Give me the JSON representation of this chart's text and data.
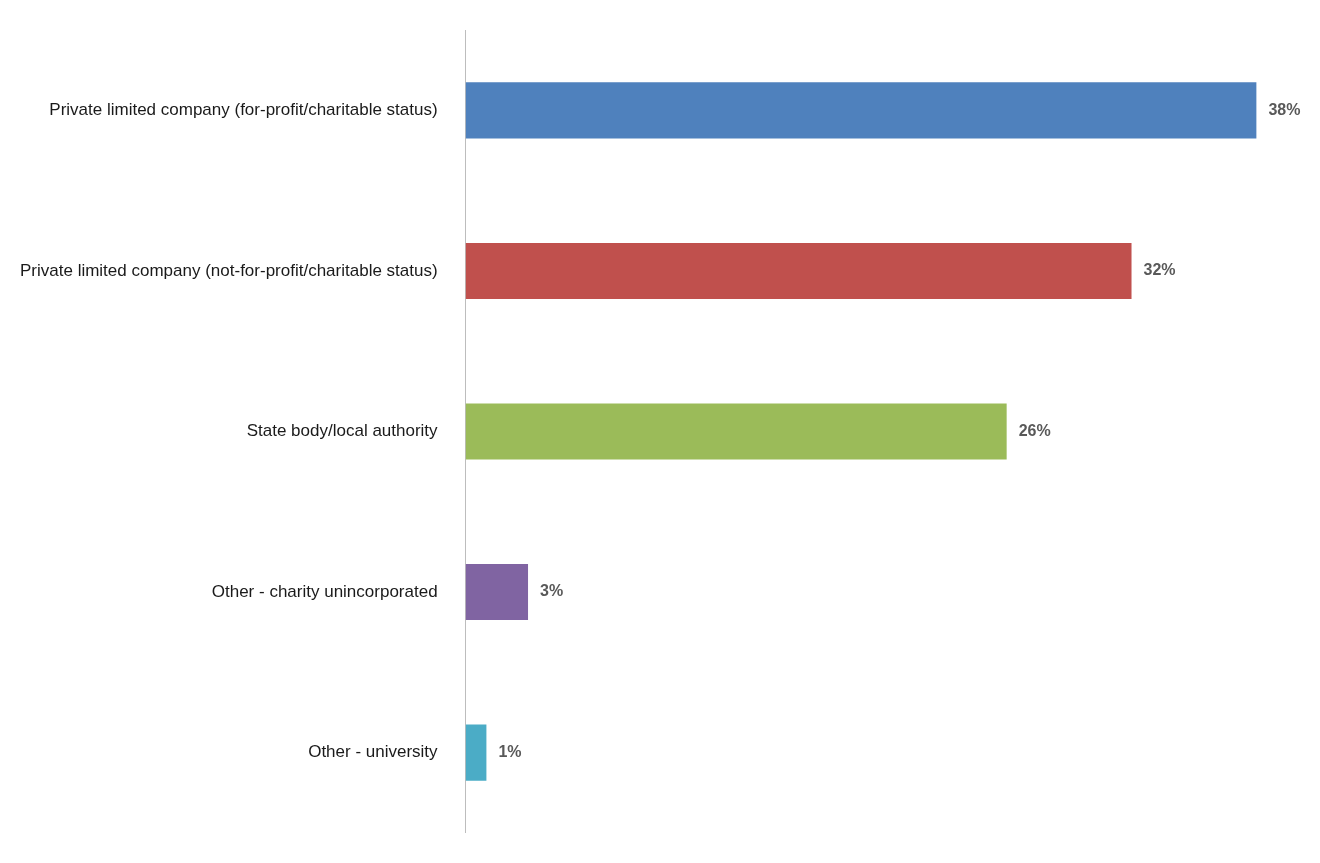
{
  "chart_data": {
    "type": "bar",
    "orientation": "horizontal",
    "categories": [
      "Private limited company (for-profit/charitable status)",
      "Private limited company (not-for-profit/charitable status)",
      "State body/local authority",
      "Other - charity unincorporated",
      "Other - university"
    ],
    "values": [
      38,
      32,
      26,
      3,
      1
    ],
    "colors": [
      "#4f81bd",
      "#c0504d",
      "#9bbb59",
      "#8064a2",
      "#4bacc6"
    ],
    "value_labels": [
      "38%",
      "32%",
      "26%",
      "3%",
      "1%"
    ],
    "tick_labels": "y"
  }
}
